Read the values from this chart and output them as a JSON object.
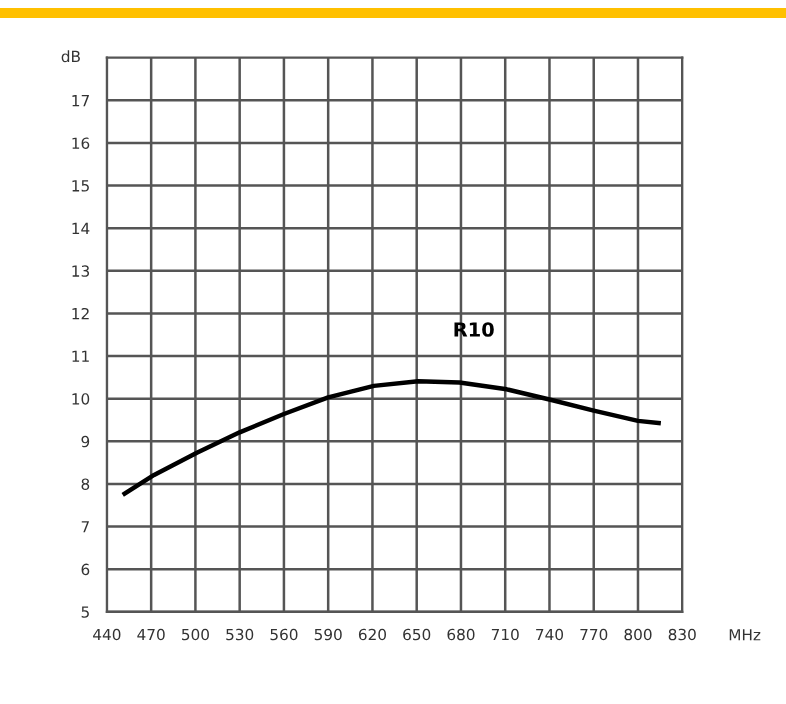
{
  "chart_data": {
    "type": "line",
    "xlabel": "MHz",
    "ylabel": "dB",
    "xlim": [
      440,
      830
    ],
    "xticks": [
      440,
      470,
      500,
      530,
      560,
      590,
      620,
      650,
      680,
      710,
      740,
      770,
      800,
      830
    ],
    "ylim": [
      5,
      18
    ],
    "yticks": [
      5,
      6,
      7,
      8,
      9,
      10,
      11,
      12,
      13,
      14,
      15,
      16,
      17
    ],
    "grid": true,
    "marker": "none",
    "line_style": "solid",
    "series": [
      {
        "name": "R10",
        "color": "#000000",
        "x": [
          452,
          472,
          501,
          530,
          560,
          590,
          621,
          651,
          679,
          711,
          740,
          770,
          800,
          814
        ],
        "values": [
          7.77,
          8.21,
          8.73,
          9.21,
          9.64,
          10.03,
          10.3,
          10.41,
          10.38,
          10.22,
          9.98,
          9.72,
          9.48,
          9.43
        ]
      }
    ]
  }
}
